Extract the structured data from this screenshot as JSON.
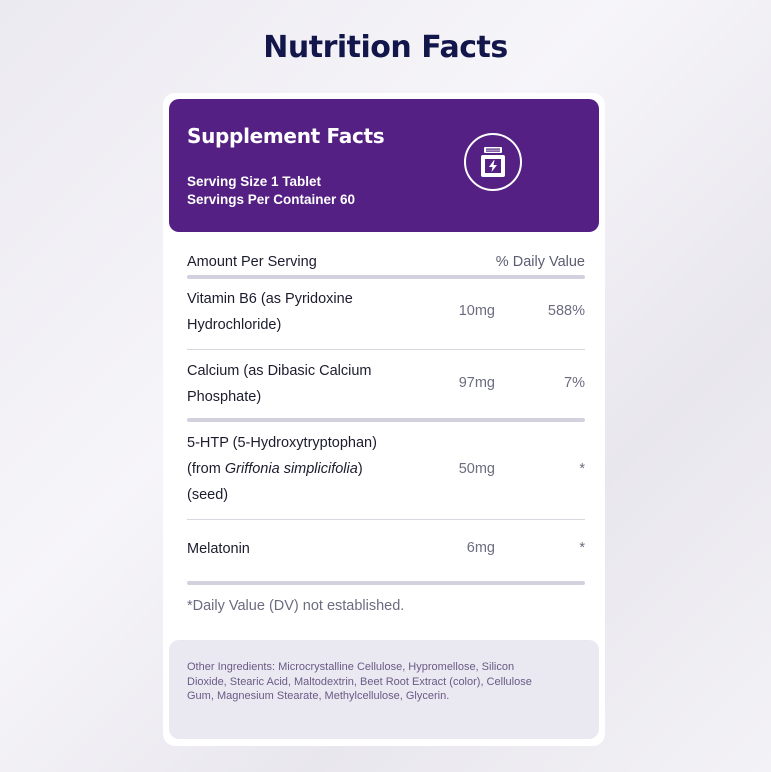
{
  "page_title": "Nutrition Facts",
  "panel": {
    "title": "Supplement Facts",
    "serving_size": "Serving Size 1 Tablet",
    "servings_per_container": "Servings Per Container 60",
    "icon": "supplement-bottle-icon",
    "header_color": "#542083"
  },
  "table": {
    "amount_header": "Amount Per Serving",
    "dv_header": "% Daily Value",
    "rows": [
      {
        "name_line1": "Vitamin B6 (as Pyridoxine",
        "name_line2": "Hydrochloride)",
        "amount": "10mg",
        "dv": "588%"
      },
      {
        "name_line1": "Calcium (as Dibasic Calcium",
        "name_line2": "Phosphate)",
        "amount": "97mg",
        "dv": "7%"
      },
      {
        "name_line1": "5-HTP (5-Hydroxytryptophan)",
        "name_line2_prefix": "(from ",
        "name_line2_italic": "Griffonia simplicifolia",
        "name_line2_suffix": ")",
        "name_line3": "(seed)",
        "amount": "50mg",
        "dv": "*"
      },
      {
        "name_line1": "Melatonin",
        "amount": "6mg",
        "dv": "*"
      }
    ],
    "footnote": "*Daily Value (DV) not established."
  },
  "other_ingredients": "Other Ingredients: Microcrystalline Cellulose, Hypromellose, Silicon Dioxide, Stearic Acid, Maltodextrin, Beet Root Extract (color), Cellulose Gum, Magnesium Stearate, Methylcellulose, Glycerin."
}
